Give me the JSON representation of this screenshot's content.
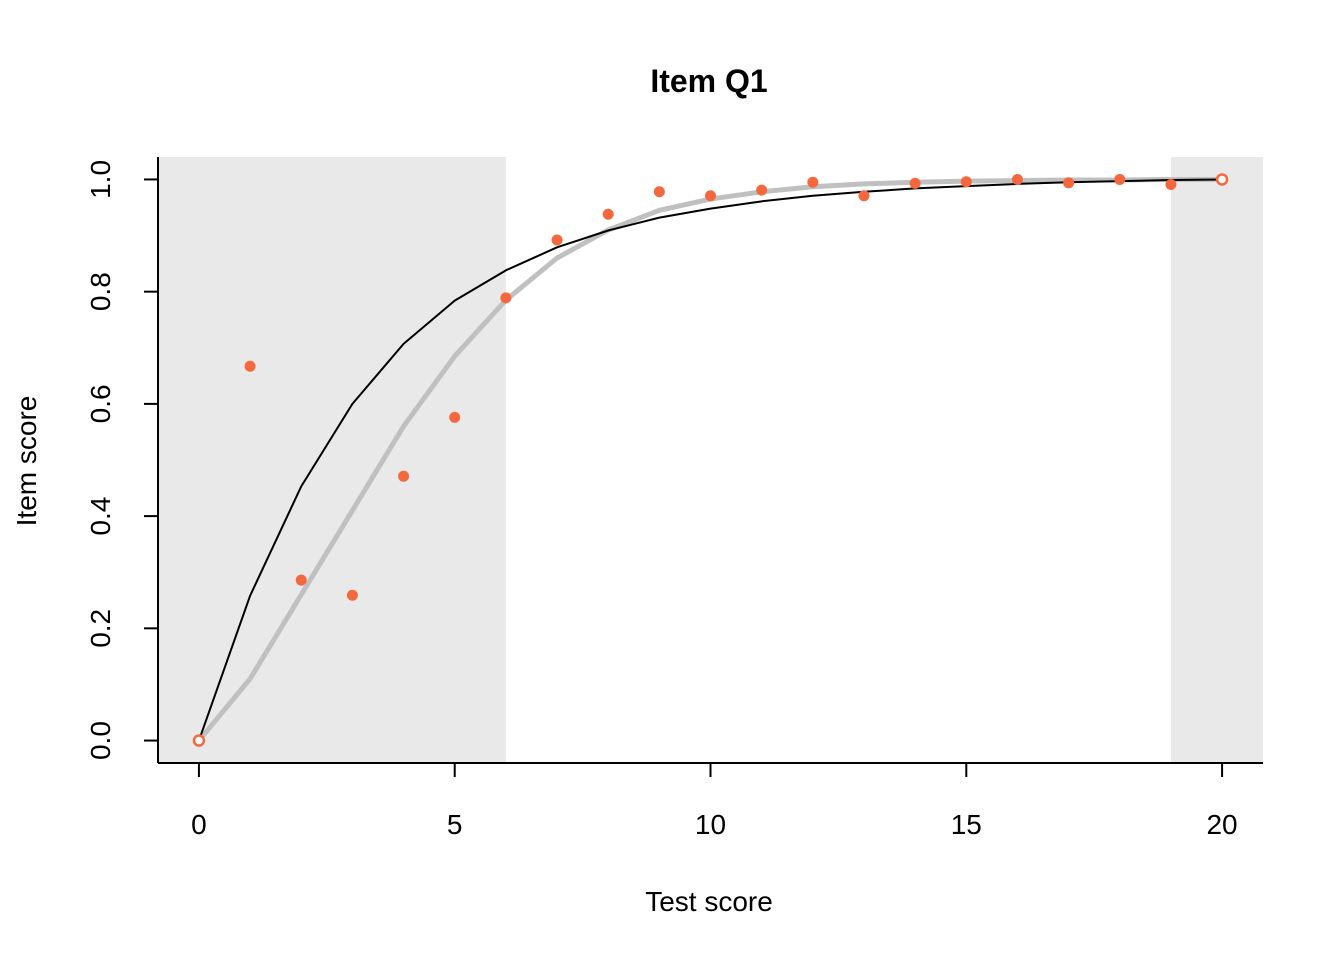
{
  "chart_data": {
    "type": "scatter",
    "title": "Item Q1",
    "xlabel": "Test score",
    "ylabel": "Item score",
    "xlim": [
      -0.8,
      20.8
    ],
    "ylim": [
      -0.04,
      1.04
    ],
    "x_ticks": [
      0,
      5,
      10,
      15,
      20
    ],
    "x_tick_labels": [
      "0",
      "5",
      "10",
      "15",
      "20"
    ],
    "y_ticks": [
      0.0,
      0.2,
      0.4,
      0.6,
      0.8,
      1.0
    ],
    "y_tick_labels": [
      "0.0",
      "0.2",
      "0.4",
      "0.6",
      "0.8",
      "1.0"
    ],
    "grid": false,
    "shaded_ranges": [
      {
        "x": [
          -0.8,
          6
        ]
      },
      {
        "x": [
          19,
          20.8
        ]
      }
    ],
    "observed_points": {
      "color": "#F5673D",
      "x": [
        0,
        1,
        2,
        3,
        4,
        5,
        6,
        7,
        8,
        9,
        10,
        11,
        12,
        13,
        14,
        15,
        16,
        17,
        18,
        19,
        20
      ],
      "y": [
        0.0,
        0.667,
        0.286,
        0.259,
        0.471,
        0.576,
        0.789,
        0.892,
        0.938,
        0.978,
        0.971,
        0.981,
        0.995,
        0.971,
        0.993,
        0.996,
        1.0,
        0.994,
        1.0,
        0.991,
        1.0
      ]
    },
    "smoothed_curve": {
      "color": "#C0C0C0",
      "x": [
        0,
        1,
        2,
        3,
        4,
        5,
        6,
        7,
        8,
        9,
        10,
        11,
        12,
        13,
        14,
        15,
        16,
        17,
        18,
        19,
        20
      ],
      "y": [
        0.0,
        0.11,
        0.26,
        0.41,
        0.56,
        0.685,
        0.785,
        0.86,
        0.91,
        0.945,
        0.965,
        0.978,
        0.987,
        0.992,
        0.995,
        0.997,
        0.998,
        0.999,
        0.999,
        1.0,
        1.0
      ]
    },
    "model_curve": {
      "color": "#000000",
      "x": [
        0,
        1,
        2,
        3,
        4,
        5,
        6,
        7,
        8,
        9,
        10,
        11,
        12,
        13,
        14,
        15,
        16,
        17,
        18,
        19,
        20
      ],
      "y": [
        0.0,
        0.258,
        0.453,
        0.6,
        0.707,
        0.784,
        0.838,
        0.879,
        0.909,
        0.932,
        0.948,
        0.961,
        0.971,
        0.978,
        0.984,
        0.988,
        0.992,
        0.995,
        0.997,
        0.999,
        1.0
      ]
    }
  }
}
